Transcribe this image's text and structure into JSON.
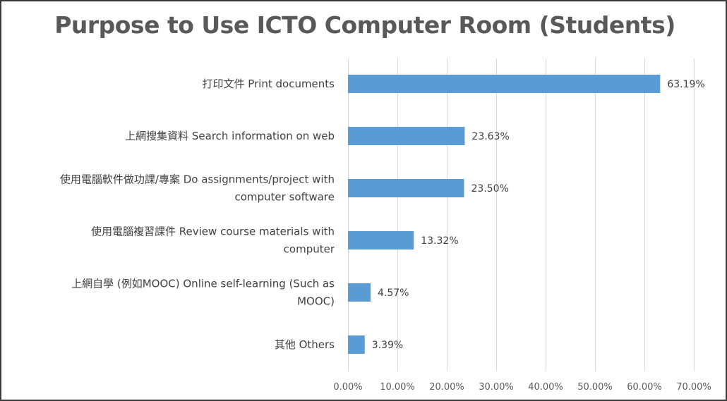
{
  "chart_data": {
    "type": "bar",
    "orientation": "horizontal",
    "title": "Purpose to Use ICTO Computer Room (Students)",
    "categories": [
      [
        "打印文件 Print documents"
      ],
      [
        "上網搜集資料 Search information on web"
      ],
      [
        "使用電腦軟件做功課/專案 Do assignments/project with",
        "computer software"
      ],
      [
        "使用電腦複習課件 Review course materials with",
        "computer"
      ],
      [
        "上網自學 (例如MOOC) Online self-learning (Such as",
        "MOOC)"
      ],
      [
        "其他 Others"
      ]
    ],
    "values": [
      63.19,
      23.63,
      23.5,
      13.32,
      4.57,
      3.39
    ],
    "value_labels": [
      "63.19%",
      "23.63%",
      "23.50%",
      "13.32%",
      "4.57%",
      "3.39%"
    ],
    "xlim": [
      0,
      70
    ],
    "x_ticks": [
      0,
      10,
      20,
      30,
      40,
      50,
      60,
      70
    ],
    "x_tick_labels": [
      "0.00%",
      "10.00%",
      "20.00%",
      "30.00%",
      "40.00%",
      "50.00%",
      "60.00%",
      "70.00%"
    ],
    "grid": true,
    "bar_color": "#5b9bd5",
    "grid_color": "#d9d9d9",
    "text_color": "#404040"
  }
}
